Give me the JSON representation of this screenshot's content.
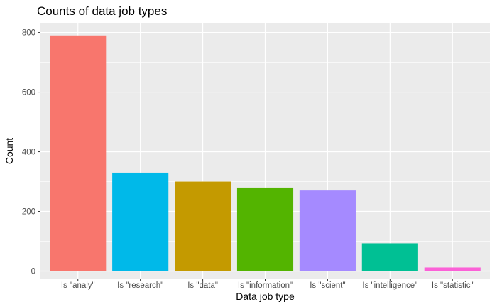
{
  "chart_data": {
    "type": "bar",
    "title": "Counts of data job types",
    "xlabel": "Data job type",
    "ylabel": "Count",
    "categories": [
      "Is \"analy\"",
      "Is \"research\"",
      "Is \"data\"",
      "Is \"information\"",
      "Is \"scient\"",
      "Is \"intelligence\"",
      "Is \"statistic\""
    ],
    "values": [
      790,
      330,
      300,
      280,
      270,
      93,
      12
    ],
    "colors": [
      "#F8766D",
      "#00B9E9",
      "#C49A00",
      "#53B400",
      "#A58AFF",
      "#00C094",
      "#FB61D7"
    ],
    "ylim": [
      -25,
      830
    ],
    "yticks": [
      0,
      200,
      400,
      600,
      800
    ],
    "grid": true,
    "legend": "none",
    "panel_background": "#EBEBEB"
  }
}
